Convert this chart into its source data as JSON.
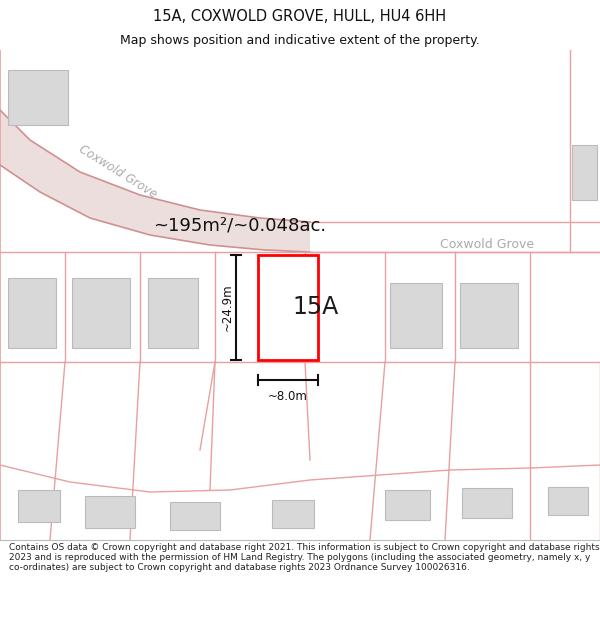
{
  "title": "15A, COXWOLD GROVE, HULL, HU4 6HH",
  "subtitle": "Map shows position and indicative extent of the property.",
  "footer": "Contains OS data © Crown copyright and database right 2021. This information is subject to Crown copyright and database rights 2023 and is reproduced with the permission of HM Land Registry. The polygons (including the associated geometry, namely x, y co-ordinates) are subject to Crown copyright and database rights 2023 Ordnance Survey 100026316.",
  "area_label": "~195m²/~0.048ac.",
  "street_label_road": "Coxwold Grove",
  "street_label_map": "Coxwold Grove",
  "plot_label": "15A",
  "dim_width": "~8.0m",
  "dim_height": "~24.9m",
  "bg_color": "#ffffff",
  "map_bg": "#fdf5f5",
  "plot_edge_color": "#ff0000",
  "plot_fill": "#ffffff",
  "building_fill": "#d8d8d8",
  "building_edge": "#bbbbbb",
  "line_color": "#e8a0a0",
  "road_fill": "#eddede",
  "road_edge": "#d09090",
  "dim_color": "#111111",
  "title_color": "#111111",
  "area_color": "#111111",
  "street_gray": "#aaaaaa"
}
